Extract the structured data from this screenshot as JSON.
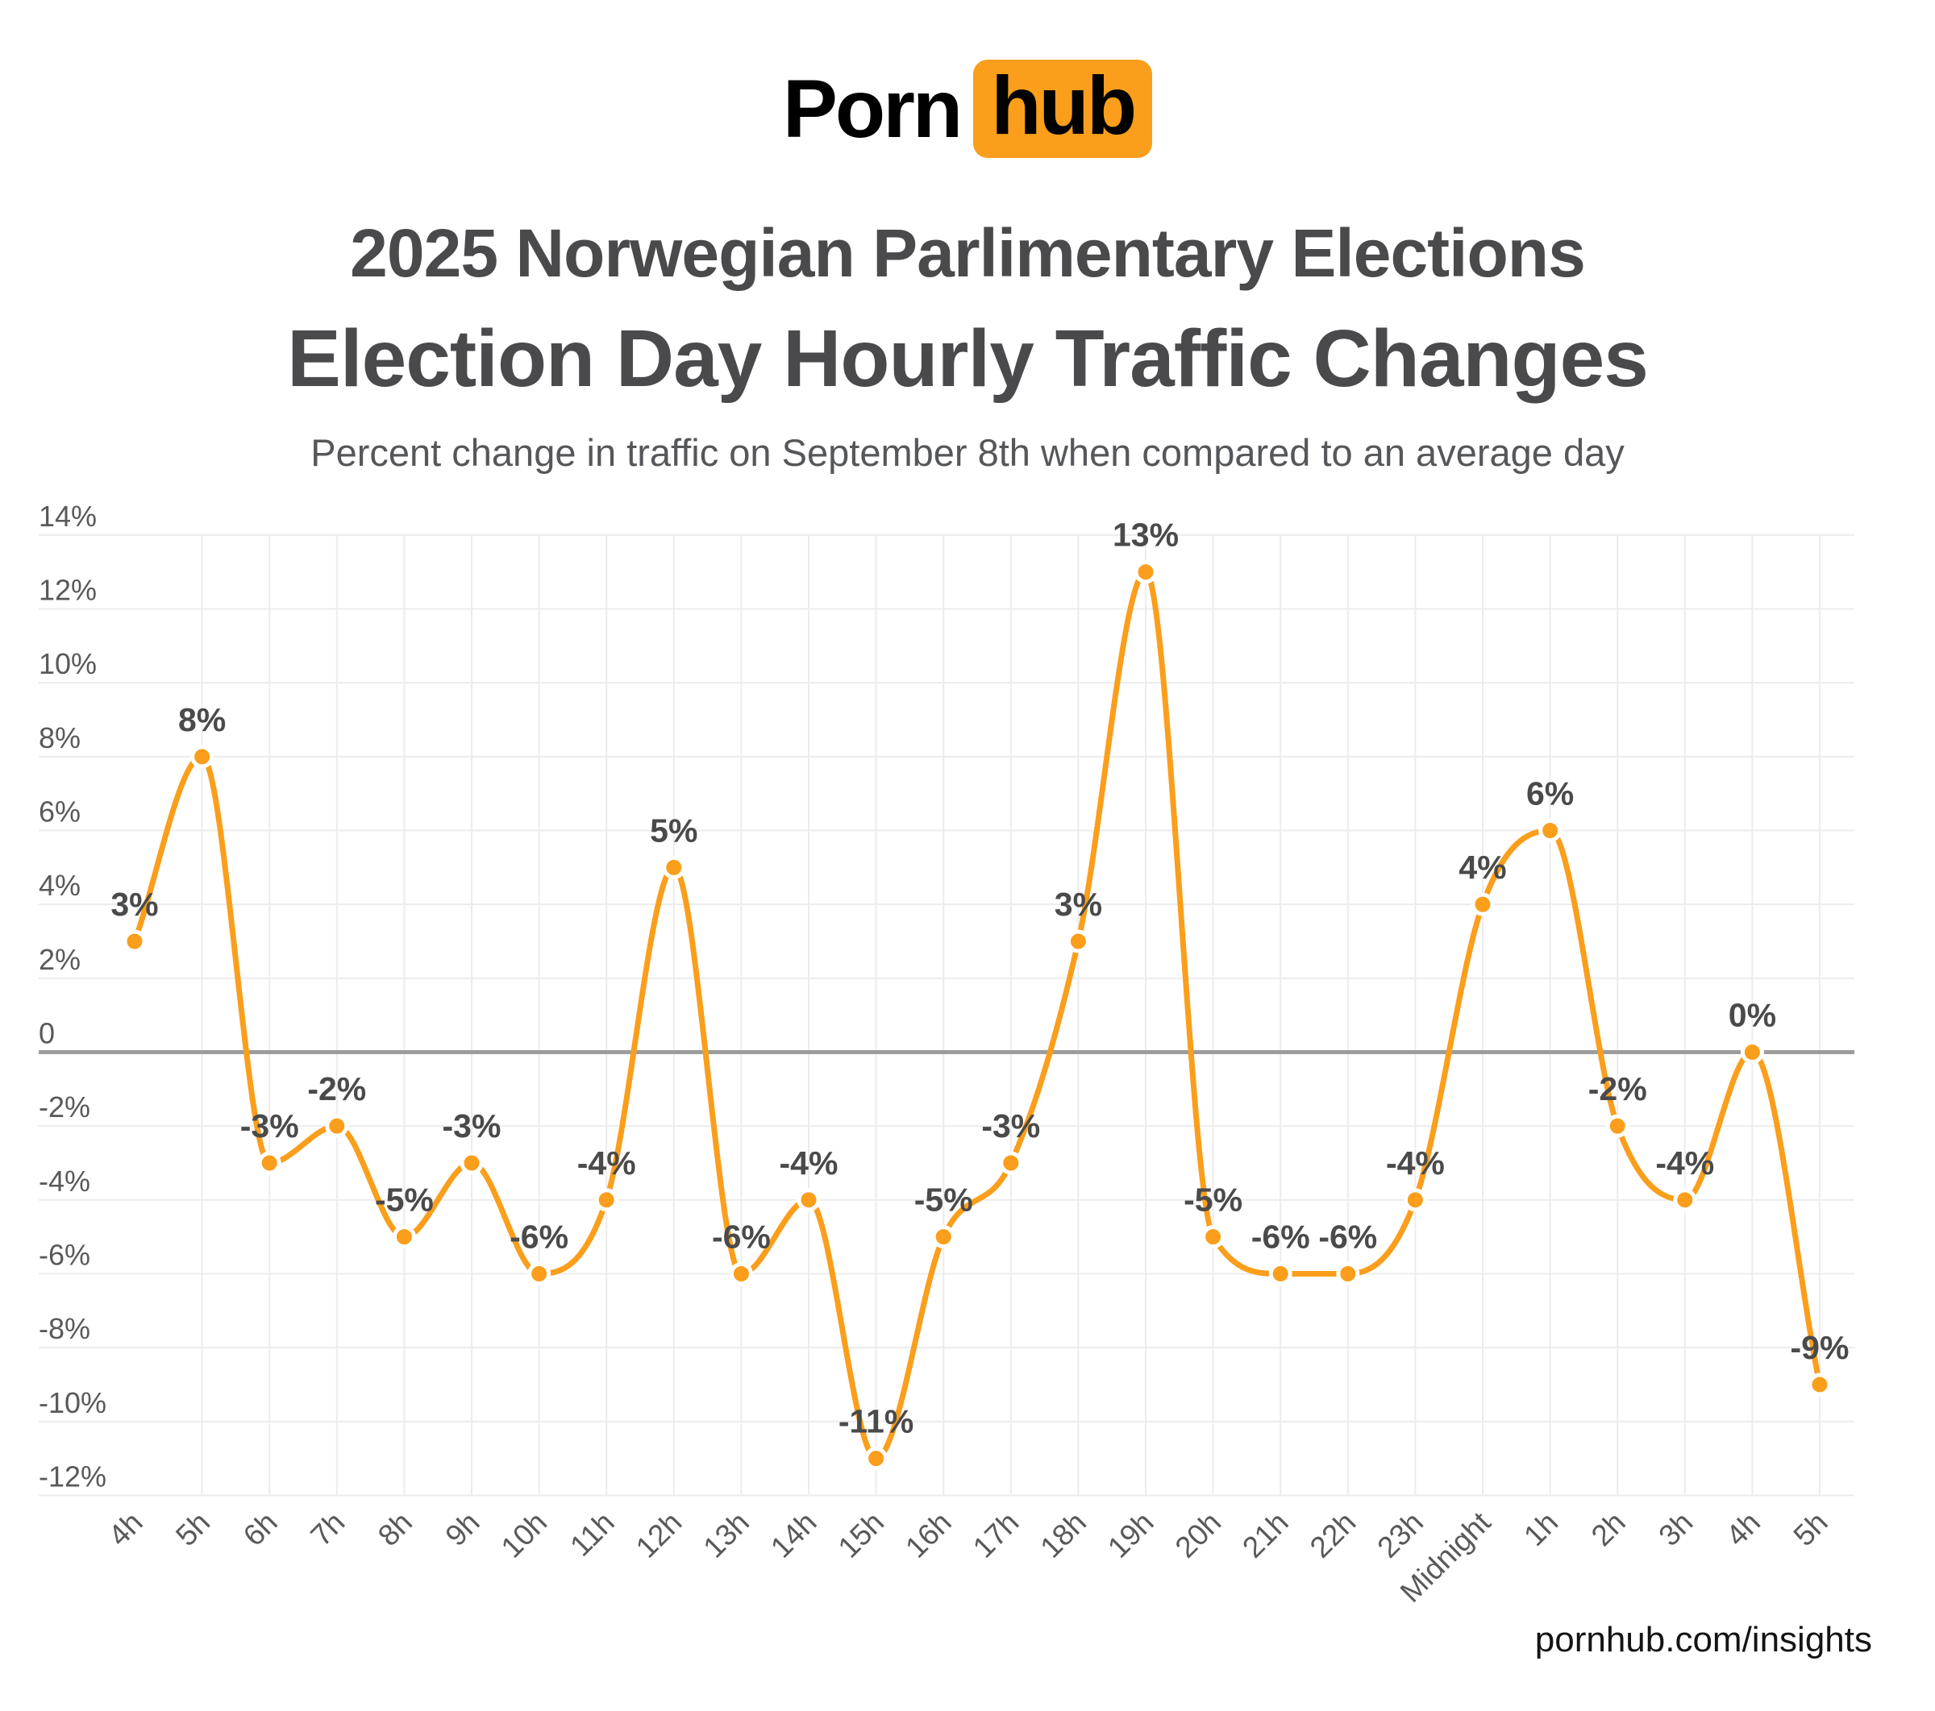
{
  "logo": {
    "porn": "Porn",
    "hub": "hub",
    "accent_color": "#fa9e1b"
  },
  "chart_data": {
    "type": "line",
    "supertitle": "2025 Norwegian Parlimentary Elections",
    "title": "Election Day Hourly Traffic Changes",
    "subtitle": "Percent change in traffic on September 8th when compared to an average day",
    "categories": [
      "4h",
      "5h",
      "6h",
      "7h",
      "8h",
      "9h",
      "10h",
      "11h",
      "12h",
      "13h",
      "14h",
      "15h",
      "16h",
      "17h",
      "18h",
      "19h",
      "20h",
      "21h",
      "22h",
      "23h",
      "Midnight",
      "1h",
      "2h",
      "3h",
      "4h",
      "5h"
    ],
    "values": [
      3,
      8,
      -3,
      -2,
      -5,
      -3,
      -6,
      -4,
      5,
      -6,
      -4,
      -11,
      -5,
      -3,
      3,
      13,
      -5,
      -6,
      -6,
      -4,
      4,
      6,
      -2,
      -4,
      0,
      -9
    ],
    "point_labels": [
      "3%",
      "8%",
      "-3%",
      "-2%",
      "-5%",
      "-3%",
      "-6%",
      "-4%",
      "5%",
      "-6%",
      "-4%",
      "-11%",
      "-5%",
      "-3%",
      "3%",
      "13%",
      "-5%",
      "-6%",
      "-6%",
      "-4%",
      "4%",
      "6%",
      "-2%",
      "-4%",
      "0%",
      "-9%"
    ],
    "ytick_values": [
      14,
      12,
      10,
      8,
      6,
      4,
      2,
      0,
      -2,
      -4,
      -6,
      -8,
      -10,
      -12
    ],
    "ytick_labels": [
      "14%",
      "12%",
      "10%",
      "8%",
      "6%",
      "4%",
      "2%",
      "0",
      "-2%",
      "-4%",
      "-6%",
      "-8%",
      "-10%",
      "-12%"
    ],
    "ylim": [
      -12,
      14
    ],
    "xlabel": "",
    "ylabel": "",
    "grid": true,
    "legend": "none",
    "smooth": "monotone",
    "colors": {
      "line": "#fa9e1b",
      "marker_fill": "#fa9e1b",
      "marker_stroke": "#ffffff",
      "grid": "#ececec",
      "zero_line": "#9c9c9c",
      "point_label": "#4a4a4a",
      "axis_label": "#58595b"
    }
  },
  "footer": {
    "link": "pornhub.com/insights"
  }
}
